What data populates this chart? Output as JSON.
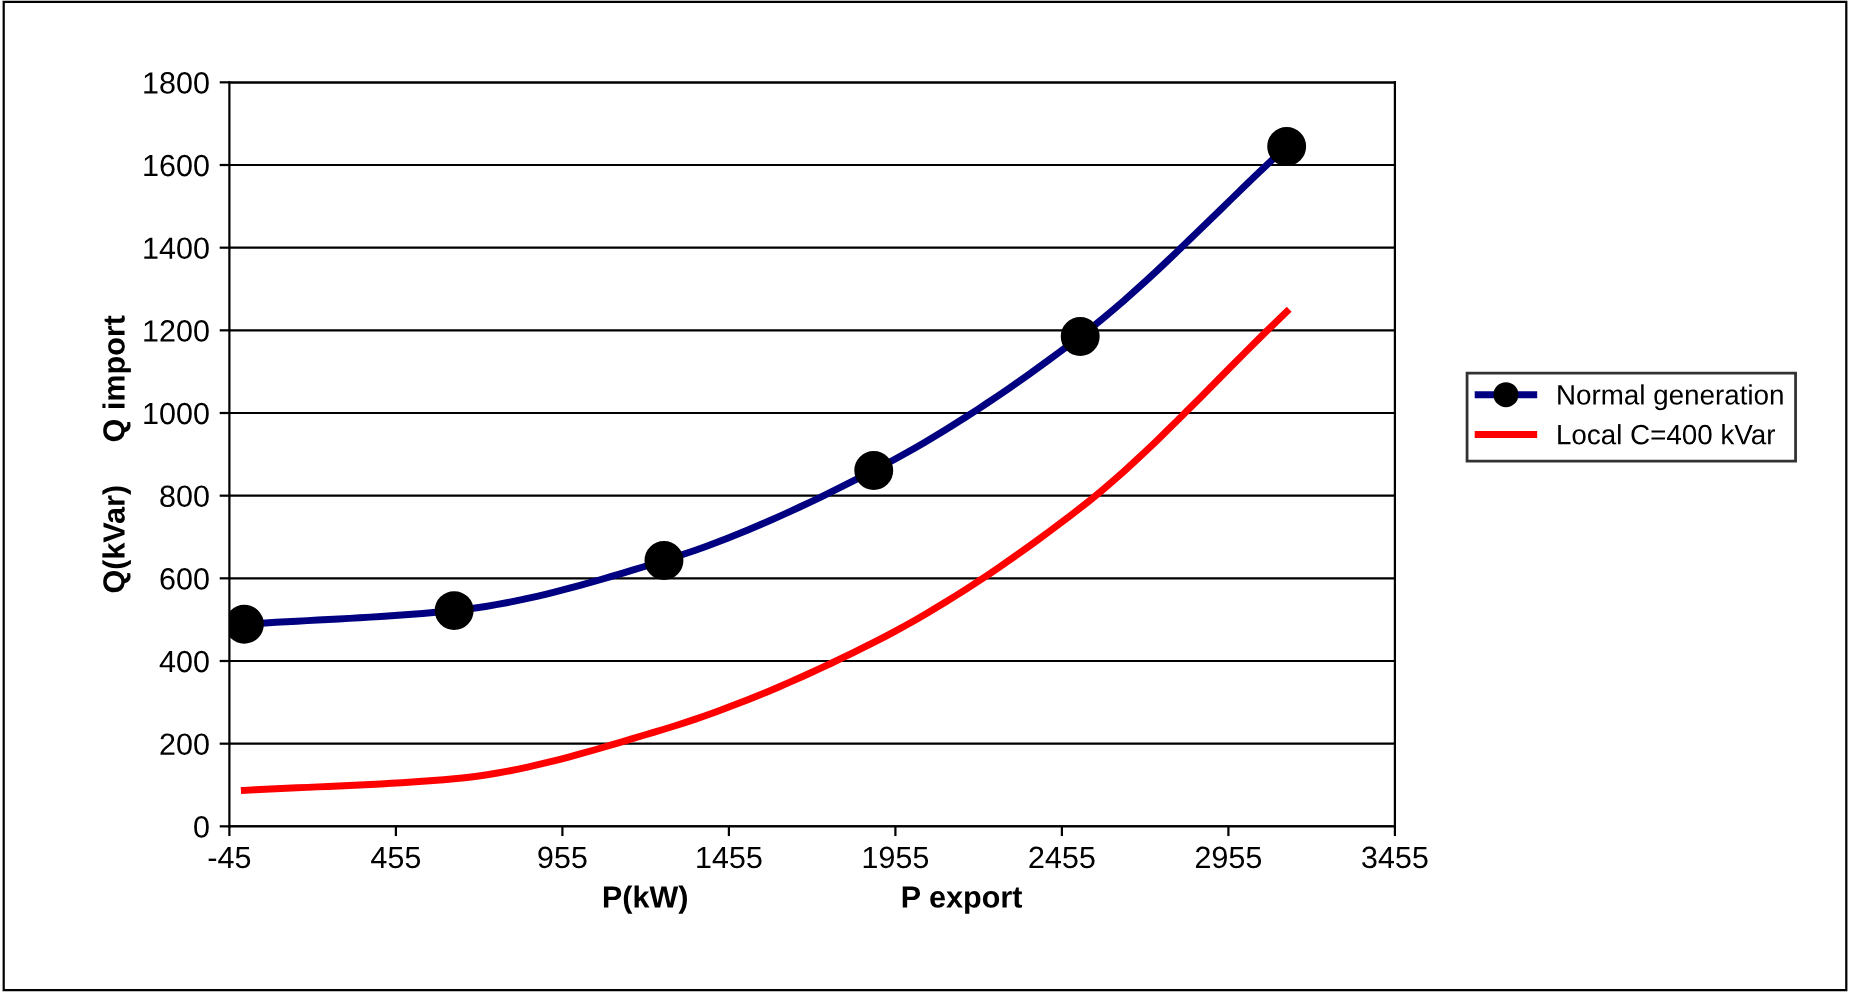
{
  "chart_data": {
    "type": "line",
    "xlabel": "P(kW)                         P export",
    "ylabel": "Q(kVar)     Q import",
    "x": [
      0,
      630,
      1260,
      1890,
      2510,
      3130
    ],
    "series": [
      {
        "name": "Normal generation",
        "color": "#000080",
        "values": [
          489,
          522,
          643,
          861,
          1185,
          1645
        ],
        "marker": "circle"
      },
      {
        "name": "Local C=400 kVar",
        "color": "#ff0000",
        "values": [
          87,
          115,
          235,
          445,
          770,
          1245
        ],
        "marker": "none"
      }
    ],
    "xlim": [
      -45,
      3455
    ],
    "xticks": [
      -45,
      455,
      955,
      1455,
      1955,
      2455,
      2955,
      3455
    ],
    "ylim": [
      0,
      1800
    ],
    "yticks": [
      0,
      200,
      400,
      600,
      800,
      1000,
      1200,
      1400,
      1600,
      1800
    ],
    "grid": "y",
    "legend": "right",
    "line_style": "solid"
  }
}
